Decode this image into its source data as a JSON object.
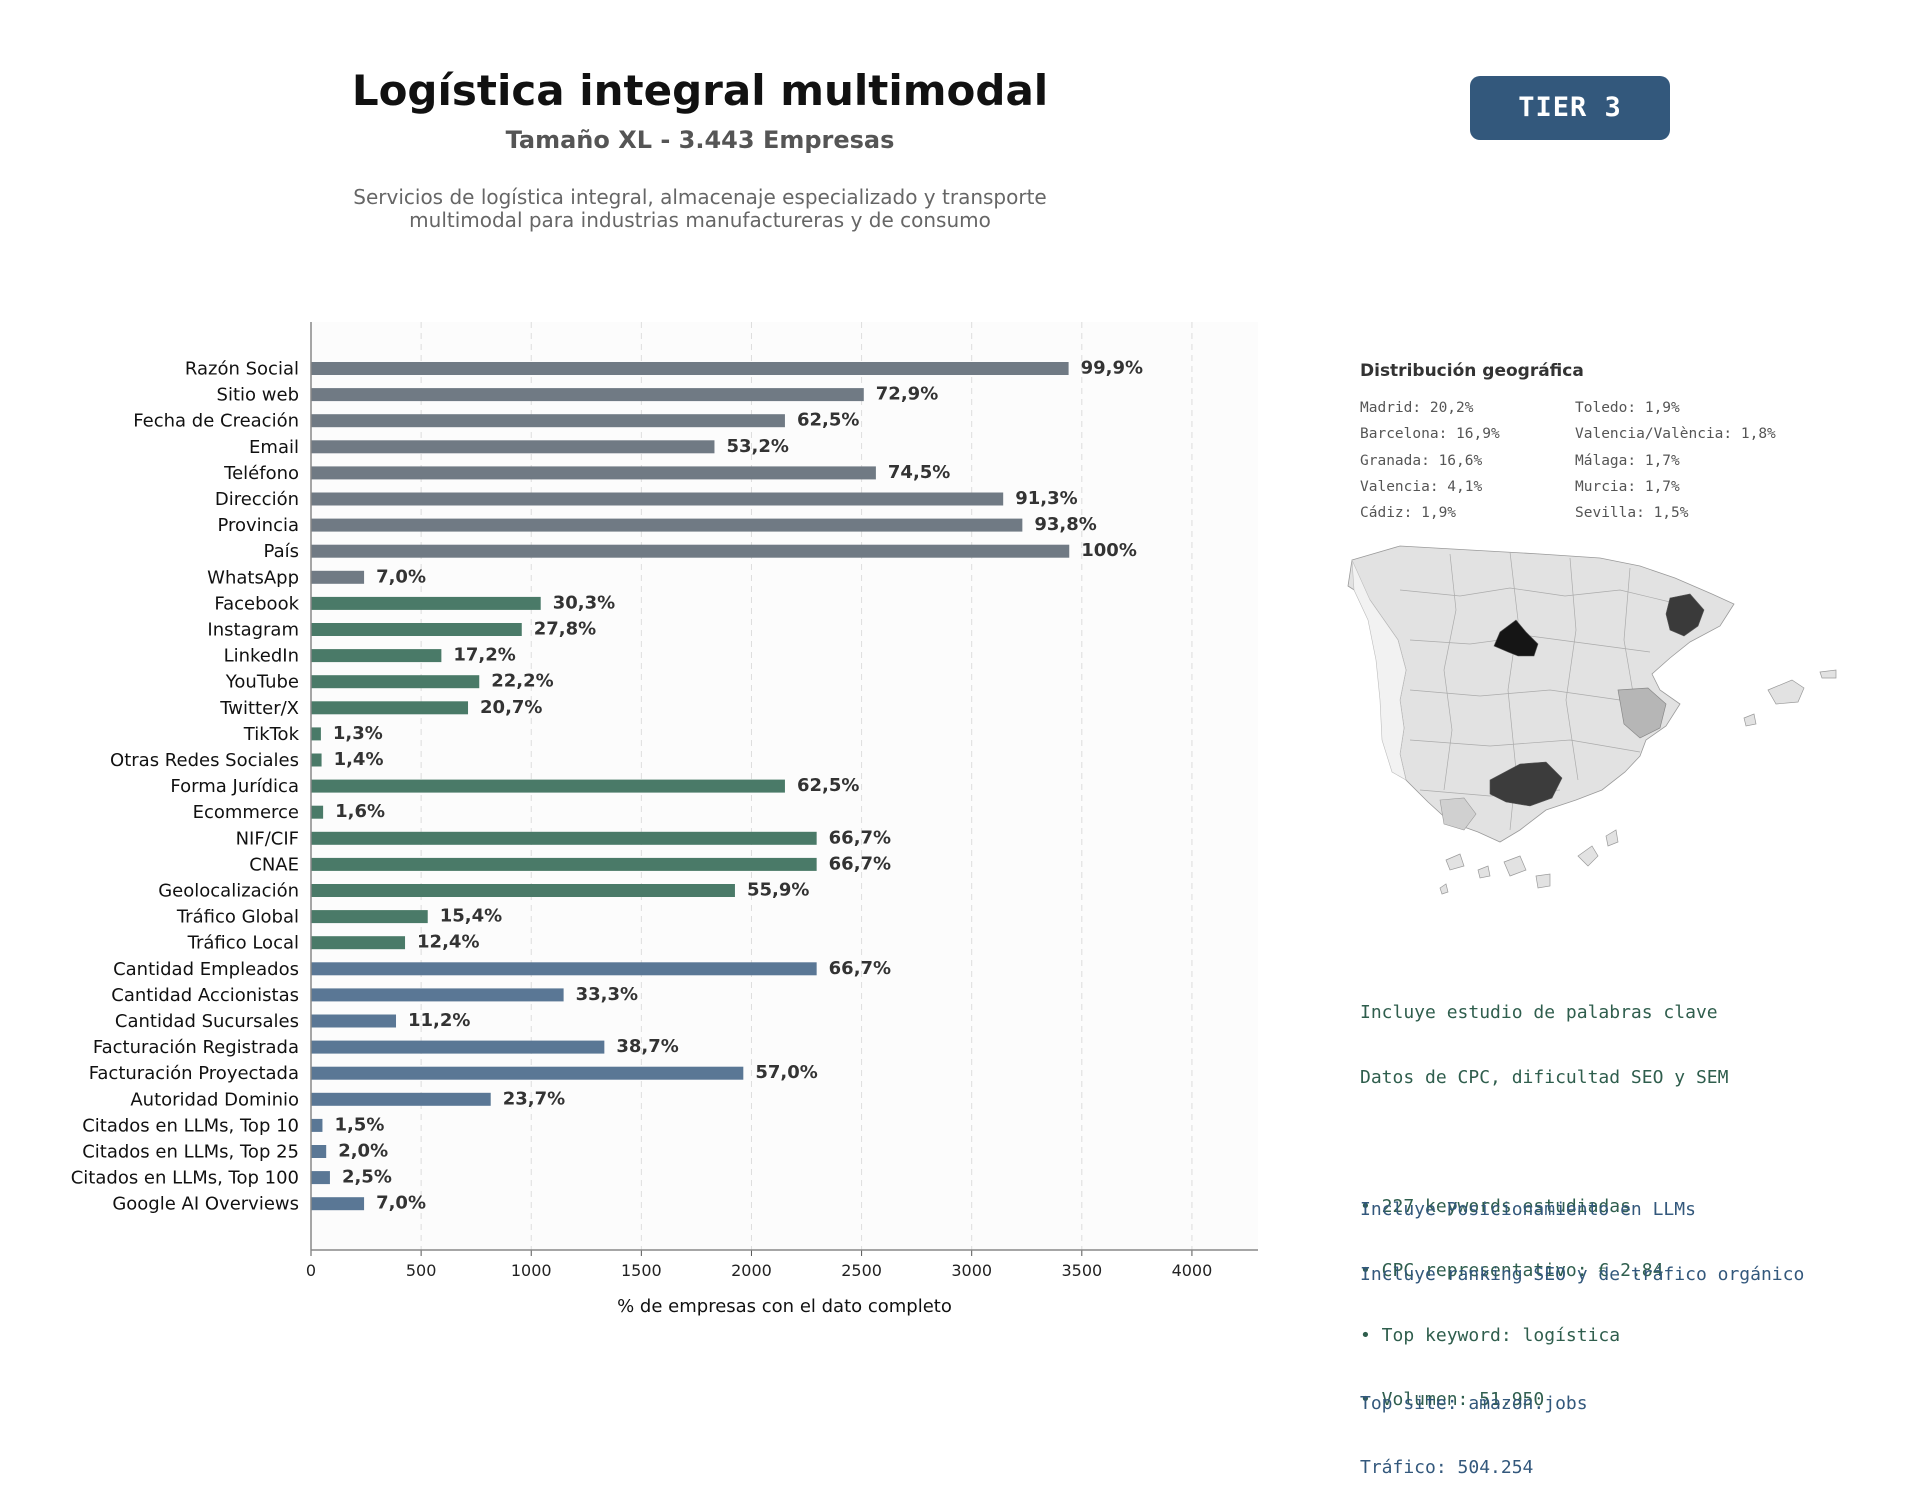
{
  "header": {
    "title": "Logística integral multimodal",
    "subtitle": "Tamaño XL - 3.443 Empresas",
    "description_lines": [
      "Servicios de logística integral, almacenaje especializado y transporte",
      "multimodal para industrias manufactureras y de consumo"
    ],
    "tier_badge": "TIER 3"
  },
  "colors": {
    "gray_bar": "#707a84",
    "green_bar": "#4a7a68",
    "blue_bar": "#5a7795",
    "tier_bg": "#33587c",
    "keyword_text": "#2f5e4d",
    "llm_text": "#33587c"
  },
  "chart_data": {
    "type": "bar",
    "orientation": "horizontal",
    "xlabel": "% de empresas con el dato completo",
    "xlim": [
      0,
      4300
    ],
    "xticks": [
      0,
      500,
      1000,
      1500,
      2000,
      2500,
      3000,
      3500,
      4000
    ],
    "grid": "vertical dashed",
    "categories": [
      "Razón Social",
      "Sitio web",
      "Fecha de Creación",
      "Email",
      "Teléfono",
      "Dirección",
      "Provincia",
      "País",
      "WhatsApp",
      "Facebook",
      "Instagram",
      "LinkedIn",
      "YouTube",
      "Twitter/X",
      "TikTok",
      "Otras Redes Sociales",
      "Forma Jurídica",
      "Ecommerce",
      "NIF/CIF",
      "CNAE",
      "Geolocalización",
      "Tráfico Global",
      "Tráfico Local",
      "Cantidad Empleados",
      "Cantidad Accionistas",
      "Cantidad Sucursales",
      "Facturación Registrada",
      "Facturación Proyectada",
      "Autoridad Dominio",
      "Citados en LLMs, Top 10",
      "Citados en LLMs, Top 25",
      "Citados en LLMs, Top 100",
      "Google AI Overviews"
    ],
    "values": [
      3440,
      2510,
      2152,
      1832,
      2565,
      3143,
      3230,
      3443,
      241,
      1043,
      957,
      592,
      764,
      713,
      45,
      48,
      2152,
      55,
      2296,
      2296,
      1925,
      530,
      427,
      2296,
      1147,
      386,
      1332,
      1963,
      816,
      52,
      69,
      86,
      241
    ],
    "labels": [
      "99,9%",
      "72,9%",
      "62,5%",
      "53,2%",
      "74,5%",
      "91,3%",
      "93,8%",
      "100%",
      "7,0%",
      "30,3%",
      "27,8%",
      "17,2%",
      "22,2%",
      "20,7%",
      "1,3%",
      "1,4%",
      "62,5%",
      "1,6%",
      "66,7%",
      "66,7%",
      "55,9%",
      "15,4%",
      "12,4%",
      "66,7%",
      "33,3%",
      "11,2%",
      "38,7%",
      "57,0%",
      "23,7%",
      "1,5%",
      "2,0%",
      "2,5%",
      "7,0%"
    ],
    "groups": [
      "gray",
      "gray",
      "gray",
      "gray",
      "gray",
      "gray",
      "gray",
      "gray",
      "gray",
      "green",
      "green",
      "green",
      "green",
      "green",
      "green",
      "green",
      "green",
      "green",
      "green",
      "green",
      "green",
      "green",
      "green",
      "blue",
      "blue",
      "blue",
      "blue",
      "blue",
      "blue",
      "blue",
      "blue",
      "blue",
      "blue"
    ]
  },
  "geo": {
    "title": "Distribución geográfica",
    "col1": [
      "Madrid: 20,2%",
      "Barcelona: 16,9%",
      "Granada: 16,6%",
      "Valencia: 4,1%",
      "Cádiz: 1,9%"
    ],
    "col2": [
      "Toledo: 1,9%",
      "Valencia/València: 1,8%",
      "Málaga: 1,7%",
      "Murcia: 1,7%",
      "Sevilla: 1,5%"
    ]
  },
  "keywords": {
    "lines": [
      "Incluye estudio de palabras clave",
      "Datos de CPC, dificultad SEO y SEM",
      "",
      "• 227 keywords estudiadas",
      "• CPC representativo: € 2.84",
      "• Top keyword: logística",
      "• Volumen: 51.950"
    ]
  },
  "llm": {
    "lines": [
      "Incluye Posicionamiento en LLMs",
      "Incluye ranking SEO y de tráfico orgánico",
      "",
      "Top site: amazon.jobs",
      "Tráfico: 504.254"
    ]
  }
}
